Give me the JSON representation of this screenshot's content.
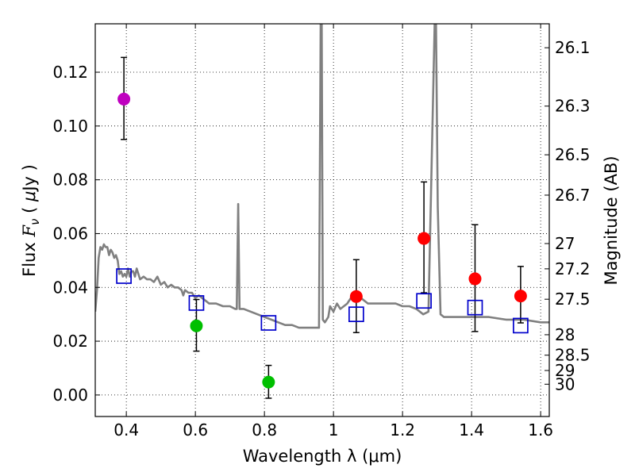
{
  "chart_data": {
    "type": "scatter",
    "xlabel": "Wavelength  λ (μm)",
    "ylabel": "Flux  Fν  ( μJy )",
    "ylabel_parts": {
      "prefix": "Flux  ",
      "symbol": "F",
      "subscript": "ν",
      "unit_open": "  ( ",
      "unit_mu": "μ",
      "unit_rest": "Jy )"
    },
    "y2label": "Magnitude (AB)",
    "xlim": [
      0.31,
      1.625
    ],
    "ylim": [
      -0.008,
      0.138
    ],
    "grid": true,
    "grid_style": "dotted",
    "x_ticks": [
      {
        "value": 0.4,
        "label": "0.4"
      },
      {
        "value": 0.6,
        "label": "0.6"
      },
      {
        "value": 0.8,
        "label": "0.8"
      },
      {
        "value": 1.0,
        "label": "1"
      },
      {
        "value": 1.2,
        "label": "1.2"
      },
      {
        "value": 1.4,
        "label": "1.4"
      },
      {
        "value": 1.6,
        "label": "1.6"
      }
    ],
    "y_ticks": [
      {
        "value": 0.0,
        "label": "0.00"
      },
      {
        "value": 0.02,
        "label": "0.02"
      },
      {
        "value": 0.04,
        "label": "0.04"
      },
      {
        "value": 0.06,
        "label": "0.06"
      },
      {
        "value": 0.08,
        "label": "0.08"
      },
      {
        "value": 0.1,
        "label": "0.10"
      },
      {
        "value": 0.12,
        "label": "0.12"
      }
    ],
    "mag_ticks": [
      {
        "label": "26.1",
        "flux": 0.1291
      },
      {
        "label": "26.3",
        "flux": 0.1074
      },
      {
        "label": "26.5",
        "flux": 0.0893
      },
      {
        "label": "26.7",
        "flux": 0.0743
      },
      {
        "label": "27",
        "flux": 0.0563
      },
      {
        "label": "27.2",
        "flux": 0.0469
      },
      {
        "label": "27.5",
        "flux": 0.0356
      },
      {
        "label": "28",
        "flux": 0.0224
      },
      {
        "label": "28.5",
        "flux": 0.0148
      },
      {
        "label": "29",
        "flux": 0.0091
      },
      {
        "label": "30",
        "flux": 0.004
      }
    ],
    "series": [
      {
        "name": "template-spectrum",
        "kind": "line",
        "color": "#808080",
        "points": [
          [
            0.31,
            0.031
          ],
          [
            0.315,
            0.039
          ],
          [
            0.32,
            0.051
          ],
          [
            0.325,
            0.055
          ],
          [
            0.33,
            0.054
          ],
          [
            0.335,
            0.056
          ],
          [
            0.34,
            0.055
          ],
          [
            0.345,
            0.055
          ],
          [
            0.35,
            0.052
          ],
          [
            0.355,
            0.054
          ],
          [
            0.36,
            0.053
          ],
          [
            0.365,
            0.051
          ],
          [
            0.37,
            0.052
          ],
          [
            0.375,
            0.05
          ],
          [
            0.38,
            0.045
          ],
          [
            0.385,
            0.046
          ],
          [
            0.39,
            0.044
          ],
          [
            0.395,
            0.045
          ],
          [
            0.4,
            0.044
          ],
          [
            0.405,
            0.047
          ],
          [
            0.41,
            0.044
          ],
          [
            0.415,
            0.046
          ],
          [
            0.42,
            0.046
          ],
          [
            0.425,
            0.044
          ],
          [
            0.43,
            0.047
          ],
          [
            0.44,
            0.043
          ],
          [
            0.45,
            0.044
          ],
          [
            0.46,
            0.043
          ],
          [
            0.47,
            0.043
          ],
          [
            0.48,
            0.042
          ],
          [
            0.49,
            0.044
          ],
          [
            0.5,
            0.041
          ],
          [
            0.51,
            0.042
          ],
          [
            0.52,
            0.04
          ],
          [
            0.53,
            0.041
          ],
          [
            0.54,
            0.04
          ],
          [
            0.55,
            0.04
          ],
          [
            0.56,
            0.039
          ],
          [
            0.565,
            0.037
          ],
          [
            0.57,
            0.039
          ],
          [
            0.58,
            0.038
          ],
          [
            0.59,
            0.038
          ],
          [
            0.6,
            0.036
          ],
          [
            0.61,
            0.037
          ],
          [
            0.62,
            0.036
          ],
          [
            0.63,
            0.035
          ],
          [
            0.64,
            0.034
          ],
          [
            0.66,
            0.034
          ],
          [
            0.68,
            0.033
          ],
          [
            0.7,
            0.033
          ],
          [
            0.715,
            0.032
          ],
          [
            0.72,
            0.032
          ],
          [
            0.724,
            0.071
          ],
          [
            0.728,
            0.032
          ],
          [
            0.74,
            0.032
          ],
          [
            0.76,
            0.031
          ],
          [
            0.78,
            0.03
          ],
          [
            0.8,
            0.029
          ],
          [
            0.82,
            0.028
          ],
          [
            0.84,
            0.027
          ],
          [
            0.86,
            0.026
          ],
          [
            0.88,
            0.026
          ],
          [
            0.9,
            0.025
          ],
          [
            0.92,
            0.025
          ],
          [
            0.94,
            0.025
          ],
          [
            0.958,
            0.025
          ],
          [
            0.963,
            0.138
          ],
          [
            0.966,
            0.138
          ],
          [
            0.969,
            0.028
          ],
          [
            0.975,
            0.027
          ],
          [
            0.985,
            0.029
          ],
          [
            0.99,
            0.033
          ],
          [
            1.0,
            0.031
          ],
          [
            1.01,
            0.034
          ],
          [
            1.02,
            0.032
          ],
          [
            1.03,
            0.033
          ],
          [
            1.04,
            0.034
          ],
          [
            1.05,
            0.036
          ],
          [
            1.06,
            0.035
          ],
          [
            1.07,
            0.037
          ],
          [
            1.08,
            0.036
          ],
          [
            1.1,
            0.034
          ],
          [
            1.12,
            0.034
          ],
          [
            1.15,
            0.034
          ],
          [
            1.18,
            0.034
          ],
          [
            1.2,
            0.033
          ],
          [
            1.22,
            0.033
          ],
          [
            1.24,
            0.032
          ],
          [
            1.25,
            0.031
          ],
          [
            1.26,
            0.03
          ],
          [
            1.275,
            0.031
          ],
          [
            1.285,
            0.09
          ],
          [
            1.293,
            0.138
          ],
          [
            1.297,
            0.138
          ],
          [
            1.302,
            0.07
          ],
          [
            1.31,
            0.03
          ],
          [
            1.32,
            0.029
          ],
          [
            1.35,
            0.029
          ],
          [
            1.4,
            0.029
          ],
          [
            1.45,
            0.029
          ],
          [
            1.5,
            0.028
          ],
          [
            1.55,
            0.028
          ],
          [
            1.6,
            0.027
          ],
          [
            1.625,
            0.027
          ]
        ]
      },
      {
        "name": "purple-point",
        "kind": "errorbar",
        "color": "#bf00bf",
        "marker": "circle",
        "points": [
          {
            "x": 0.393,
            "y": 0.11,
            "lo": 0.095,
            "hi": 0.1255
          }
        ]
      },
      {
        "name": "green-points",
        "kind": "errorbar",
        "color": "#00bf00",
        "marker": "circle",
        "points": [
          {
            "x": 0.603,
            "y": 0.0257,
            "lo": 0.0163,
            "hi": 0.0355
          },
          {
            "x": 0.812,
            "y": 0.0048,
            "lo": -0.0012,
            "hi": 0.011
          }
        ]
      },
      {
        "name": "red-points",
        "kind": "errorbar",
        "color": "#ff0000",
        "marker": "circle",
        "points": [
          {
            "x": 1.066,
            "y": 0.0366,
            "lo": 0.0232,
            "hi": 0.0503
          },
          {
            "x": 1.262,
            "y": 0.0582,
            "lo": 0.038,
            "hi": 0.0792
          },
          {
            "x": 1.41,
            "y": 0.0432,
            "lo": 0.0236,
            "hi": 0.0633
          },
          {
            "x": 1.542,
            "y": 0.0368,
            "lo": 0.0268,
            "hi": 0.0478
          }
        ]
      },
      {
        "name": "model-photometry",
        "kind": "scatter",
        "color": "#0000cc",
        "marker": "open-square",
        "points": [
          {
            "x": 0.393,
            "y": 0.0442
          },
          {
            "x": 0.603,
            "y": 0.0342
          },
          {
            "x": 0.812,
            "y": 0.0268
          },
          {
            "x": 1.066,
            "y": 0.03
          },
          {
            "x": 1.262,
            "y": 0.035
          },
          {
            "x": 1.41,
            "y": 0.0325
          },
          {
            "x": 1.542,
            "y": 0.0258
          }
        ]
      }
    ]
  }
}
